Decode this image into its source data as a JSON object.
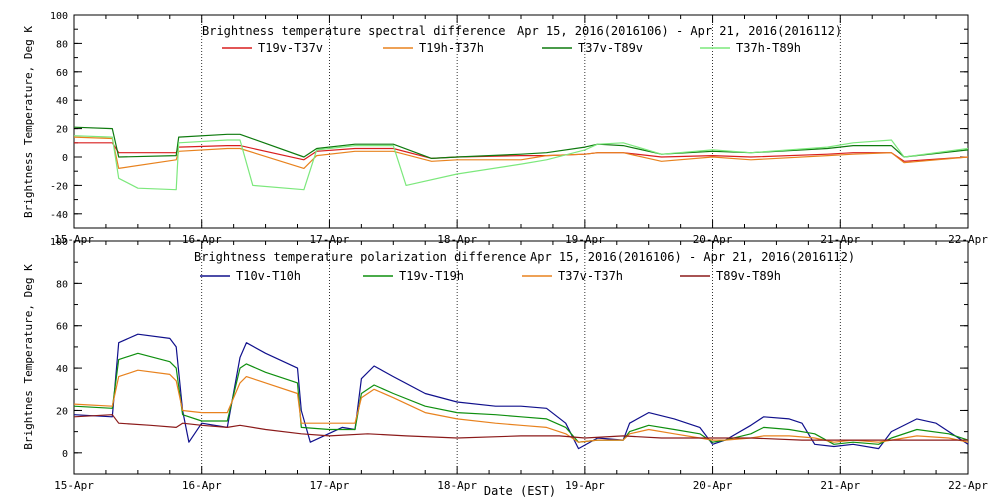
{
  "chart_data": [
    {
      "type": "line",
      "title": "Brightness temperature spectral difference",
      "date_range": "Apr 15, 2016(2016106) - Apr 21, 2016(2016112)",
      "ylabel": "Brightness Temperature, Deg K",
      "xlabel": "",
      "ylim": [
        -50,
        100
      ],
      "yticks": [
        -40,
        -20,
        0,
        20,
        40,
        60,
        80,
        100
      ],
      "xlim": [
        0,
        7
      ],
      "xticks": [
        "15-Apr",
        "16-Apr",
        "17-Apr",
        "18-Apr",
        "19-Apr",
        "20-Apr",
        "21-Apr",
        "22-Apr"
      ],
      "x_unit": "days since 15-Apr",
      "grid": "vertical dotted at day boundaries",
      "legend": "top",
      "series": [
        {
          "name": "T19v-T37v",
          "color": "#d81e1e",
          "x": [
            0,
            0.3,
            0.35,
            0.8,
            0.82,
            1.2,
            1.3,
            1.8,
            1.9,
            2.2,
            2.5,
            2.8,
            3.0,
            3.5,
            3.7,
            4.0,
            4.1,
            4.3,
            4.6,
            5.0,
            5.3,
            5.9,
            6.1,
            6.4,
            6.5,
            7.0
          ],
          "values": [
            10,
            10,
            3,
            3,
            7,
            8,
            8,
            -2,
            4,
            6,
            6,
            -1,
            0,
            1,
            1,
            2,
            3,
            3,
            0,
            1,
            0,
            2,
            3,
            3,
            -3,
            0
          ]
        },
        {
          "name": "T19h-T37h",
          "color": "#e8821e",
          "x": [
            0,
            0.3,
            0.35,
            0.8,
            0.82,
            1.2,
            1.3,
            1.8,
            1.9,
            2.2,
            2.5,
            2.8,
            3.0,
            3.5,
            3.7,
            4.0,
            4.1,
            4.3,
            4.6,
            5.0,
            5.3,
            5.9,
            6.1,
            6.4,
            6.5,
            7.0
          ],
          "values": [
            14,
            13,
            -8,
            -2,
            4,
            6,
            6,
            -8,
            1,
            4,
            4,
            -3,
            -2,
            -2,
            1,
            2,
            3,
            3,
            -3,
            0,
            -2,
            1,
            2,
            3,
            -4,
            0
          ]
        },
        {
          "name": "T37v-T89v",
          "color": "#0e7a0e",
          "x": [
            0,
            0.3,
            0.35,
            0.8,
            0.82,
            1.2,
            1.3,
            1.8,
            1.9,
            2.2,
            2.5,
            2.8,
            3.0,
            3.5,
            3.7,
            4.0,
            4.1,
            4.3,
            4.6,
            5.0,
            5.3,
            5.9,
            6.1,
            6.4,
            6.5,
            7.0
          ],
          "values": [
            21,
            20,
            0,
            1,
            14,
            16,
            16,
            0,
            6,
            9,
            9,
            -1,
            0,
            2,
            3,
            7,
            9,
            8,
            2,
            4,
            3,
            6,
            8,
            8,
            0,
            5
          ]
        },
        {
          "name": "T37h-T89h",
          "color": "#7ce87c",
          "x": [
            0,
            0.3,
            0.35,
            0.5,
            0.8,
            0.82,
            1.2,
            1.3,
            1.4,
            1.8,
            1.9,
            2.2,
            2.5,
            2.6,
            3.0,
            3.5,
            3.7,
            4.0,
            4.1,
            4.3,
            4.6,
            5.0,
            5.3,
            5.9,
            6.1,
            6.4,
            6.5,
            7.0
          ],
          "values": [
            15,
            14,
            -15,
            -22,
            -23,
            10,
            12,
            12,
            -20,
            -23,
            5,
            8,
            8,
            -20,
            -12,
            -5,
            -2,
            5,
            9,
            10,
            2,
            5,
            3,
            7,
            10,
            12,
            0,
            6
          ]
        }
      ]
    },
    {
      "type": "line",
      "title": "Brightness temperature polarization difference",
      "date_range": "Apr 15, 2016(2016106) - Apr 21, 2016(2016112)",
      "ylabel": "Brightnes Temperature, Deg K",
      "xlabel": "Date (EST)",
      "ylim": [
        -10,
        100
      ],
      "yticks": [
        0,
        20,
        40,
        60,
        80,
        100
      ],
      "xlim": [
        0,
        7
      ],
      "xticks": [
        "15-Apr",
        "16-Apr",
        "17-Apr",
        "18-Apr",
        "19-Apr",
        "20-Apr",
        "21-Apr",
        "22-Apr"
      ],
      "x_unit": "days since 15-Apr",
      "grid": "vertical dotted at day boundaries",
      "legend": "top",
      "series": [
        {
          "name": "T10v-T10h",
          "color": "#10108c",
          "x": [
            0,
            0.3,
            0.35,
            0.5,
            0.75,
            0.8,
            0.85,
            0.9,
            1.0,
            1.2,
            1.3,
            1.35,
            1.5,
            1.75,
            1.78,
            1.85,
            2.1,
            2.2,
            2.25,
            2.35,
            2.5,
            2.75,
            3.0,
            3.3,
            3.5,
            3.7,
            3.85,
            3.95,
            4.1,
            4.3,
            4.35,
            4.5,
            4.7,
            4.9,
            5.0,
            5.1,
            5.3,
            5.4,
            5.6,
            5.7,
            5.8,
            5.95,
            6.1,
            6.3,
            6.4,
            6.6,
            6.75,
            6.85,
            7.0
          ],
          "values": [
            18,
            17,
            52,
            56,
            54,
            50,
            20,
            5,
            14,
            12,
            45,
            52,
            47,
            40,
            20,
            5,
            12,
            11,
            35,
            41,
            36,
            28,
            24,
            22,
            22,
            21,
            14,
            2,
            7,
            6,
            14,
            19,
            16,
            12,
            4,
            6,
            13,
            17,
            16,
            14,
            4,
            3,
            4,
            2,
            10,
            16,
            14,
            10,
            4
          ]
        },
        {
          "name": "T19v-T19h",
          "color": "#0f8f0f",
          "x": [
            0,
            0.3,
            0.35,
            0.5,
            0.75,
            0.8,
            0.85,
            1.0,
            1.2,
            1.3,
            1.35,
            1.5,
            1.75,
            1.78,
            2.0,
            2.2,
            2.25,
            2.35,
            2.5,
            2.75,
            3.0,
            3.3,
            3.5,
            3.7,
            3.85,
            3.95,
            4.1,
            4.3,
            4.35,
            4.5,
            4.7,
            4.9,
            5.0,
            5.1,
            5.3,
            5.4,
            5.6,
            5.8,
            5.95,
            6.1,
            6.3,
            6.4,
            6.6,
            6.85,
            7.0
          ],
          "values": [
            22,
            21,
            44,
            47,
            43,
            40,
            18,
            15,
            15,
            40,
            42,
            38,
            33,
            12,
            11,
            11,
            28,
            32,
            28,
            22,
            19,
            18,
            17,
            16,
            12,
            5,
            6,
            6,
            10,
            13,
            11,
            9,
            5,
            6,
            9,
            12,
            11,
            9,
            4,
            5,
            4,
            7,
            11,
            9,
            6
          ]
        },
        {
          "name": "T37v-T37h",
          "color": "#e8821e",
          "x": [
            0,
            0.3,
            0.35,
            0.5,
            0.75,
            0.8,
            0.85,
            1.0,
            1.2,
            1.3,
            1.35,
            1.5,
            1.75,
            1.78,
            2.0,
            2.2,
            2.25,
            2.35,
            2.5,
            2.75,
            3.0,
            3.3,
            3.5,
            3.7,
            3.85,
            3.95,
            4.1,
            4.3,
            4.35,
            4.5,
            4.7,
            4.9,
            5.0,
            5.1,
            5.3,
            5.4,
            5.6,
            5.8,
            5.95,
            6.1,
            6.3,
            6.4,
            6.6,
            6.85,
            7.0
          ],
          "values": [
            23,
            22,
            36,
            39,
            37,
            34,
            20,
            19,
            19,
            33,
            36,
            33,
            28,
            14,
            14,
            14,
            26,
            30,
            26,
            19,
            16,
            14,
            13,
            12,
            9,
            5,
            6,
            6,
            9,
            11,
            9,
            7,
            6,
            6,
            7,
            8,
            8,
            7,
            5,
            6,
            5,
            6,
            8,
            7,
            5
          ]
        },
        {
          "name": "T89v-T89h",
          "color": "#8b1a1a",
          "x": [
            0,
            0.3,
            0.35,
            0.6,
            0.8,
            0.85,
            1.0,
            1.2,
            1.3,
            1.5,
            1.78,
            2.0,
            2.3,
            2.6,
            3.0,
            3.5,
            3.8,
            4.0,
            4.3,
            4.6,
            5.0,
            5.3,
            5.7,
            6.0,
            6.3,
            6.6,
            7.0
          ],
          "values": [
            17,
            18,
            14,
            13,
            12,
            14,
            13,
            12,
            13,
            11,
            9,
            8,
            9,
            8,
            7,
            8,
            8,
            7,
            8,
            7,
            7,
            7,
            6,
            6,
            6,
            6,
            6
          ]
        }
      ]
    }
  ]
}
